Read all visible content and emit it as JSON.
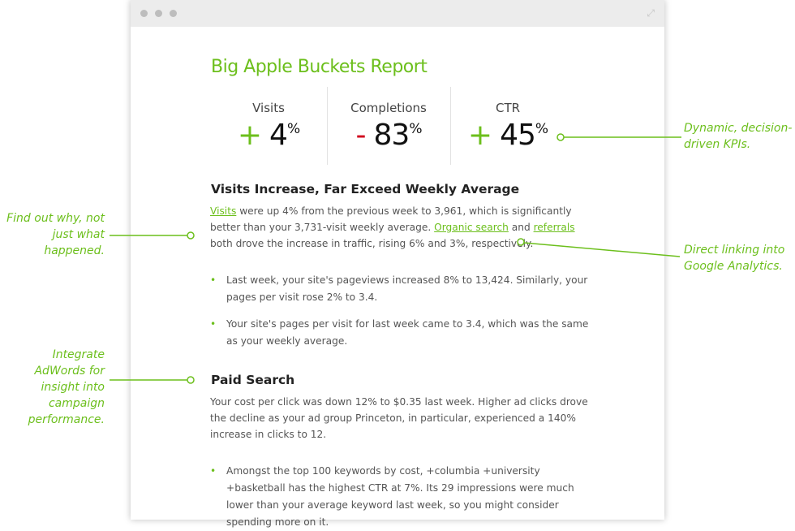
{
  "report": {
    "title": "Big Apple Buckets Report",
    "kpis": [
      {
        "label": "Visits",
        "sign": "+",
        "value": "4",
        "unit": "%",
        "color": "#6cbf1c"
      },
      {
        "label": "Completions",
        "sign": "-",
        "value": "83",
        "unit": "%",
        "color": "#d0021b"
      },
      {
        "label": "CTR",
        "sign": "+",
        "value": "45",
        "unit": "%",
        "color": "#6cbf1c"
      }
    ],
    "section1": {
      "heading": "Visits Increase, Far Exceed Weekly Average",
      "link1": "Visits",
      "text1": " were up 4% from the previous week to 3,961, which is significantly better than your 3,731-visit weekly average. ",
      "link2": "Organic search",
      "text2": " and ",
      "link3": "referrals",
      "text3": " both drove the increase in traffic, rising 6% and 3%, respectively.",
      "bullets": [
        "Last week, your site's pageviews increased 8% to 13,424. Similarly, your pages per visit rose 2% to 3.4.",
        "Your site's pages per visit for last week came to 3.4, which was the same as your weekly average."
      ]
    },
    "section2": {
      "heading": "Paid Search",
      "text": "Your cost per click was down 12% to $0.35 last week. Higher ad clicks drove the decline as your ad group Princeton, in particular, experienced a 140% increase in clicks to 12.",
      "bullets": [
        "Amongst the top 100 keywords by cost, +columbia +university +basketball has the highest CTR at 7%. Its 29 impressions were much lower than your average keyword last week, so you might consider spending more on it."
      ]
    }
  },
  "annotations": {
    "kpis": "Dynamic, decision-driven KPIs.",
    "why": "Find out why, not just what happened.",
    "linking": "Direct linking into Google Analytics.",
    "adwords": "Integrate AdWords for insight into campaign performance."
  },
  "colors": {
    "accent": "#6cbf1c",
    "negative": "#d0021b"
  }
}
